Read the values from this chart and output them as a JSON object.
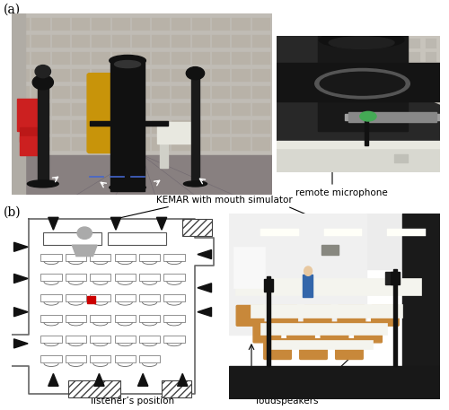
{
  "fig_width": 5.0,
  "fig_height": 4.57,
  "dpi": 100,
  "background_color": "#ffffff",
  "label_a": "(a)",
  "label_b": "(b)",
  "annotation_remote_mic": "remote microphone",
  "annotation_kemar": "KEMAR with mouth simulator",
  "annotation_listener": "listener’s position",
  "annotation_loudspeakers": "loudspeakers",
  "annotation_fontsize": 7.5,
  "label_fontsize": 10
}
